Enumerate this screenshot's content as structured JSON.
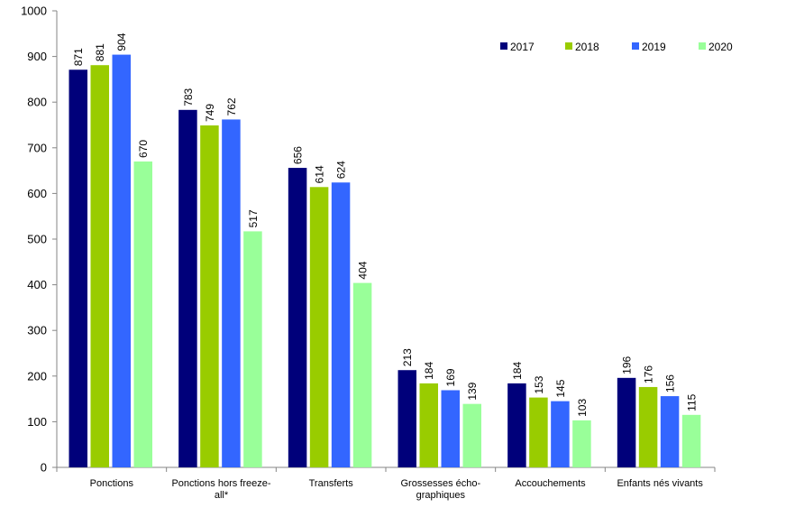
{
  "chart_data": {
    "type": "bar",
    "title": "",
    "xlabel": "",
    "ylabel": "",
    "ylim": [
      0,
      1000
    ],
    "yticks": [
      0,
      100,
      200,
      300,
      400,
      500,
      600,
      700,
      800,
      900,
      1000
    ],
    "grid": false,
    "legend_position": "top-right",
    "categories": [
      [
        "Ponctions"
      ],
      [
        "Ponctions hors freeze-",
        "all*"
      ],
      [
        "Transferts"
      ],
      [
        "Grossesses écho-",
        "graphiques"
      ],
      [
        "Accouchements"
      ],
      [
        "Enfants nés vivants"
      ]
    ],
    "series": [
      {
        "name": "2017",
        "color": "#00007a",
        "values": [
          871,
          783,
          656,
          213,
          184,
          196
        ]
      },
      {
        "name": "2018",
        "color": "#99cc00",
        "values": [
          881,
          749,
          614,
          184,
          153,
          176
        ]
      },
      {
        "name": "2019",
        "color": "#3366ff",
        "values": [
          904,
          762,
          624,
          169,
          145,
          156
        ]
      },
      {
        "name": "2020",
        "color": "#99ff99",
        "values": [
          670,
          517,
          404,
          139,
          103,
          115
        ]
      }
    ]
  }
}
